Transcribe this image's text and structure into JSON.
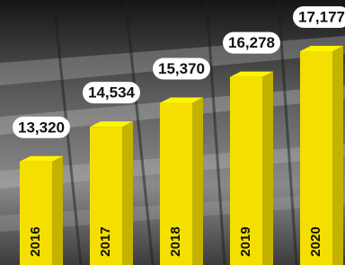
{
  "chart_data": {
    "type": "bar",
    "categories": [
      "2016",
      "2017",
      "2018",
      "2019",
      "2020"
    ],
    "values": [
      13320,
      14534,
      15370,
      16278,
      17177
    ],
    "value_labels": [
      "13,320",
      "14,534",
      "15,370",
      "16,278",
      "17,177"
    ],
    "color": "#f4df00",
    "ylim": [
      9700,
      17900
    ]
  }
}
